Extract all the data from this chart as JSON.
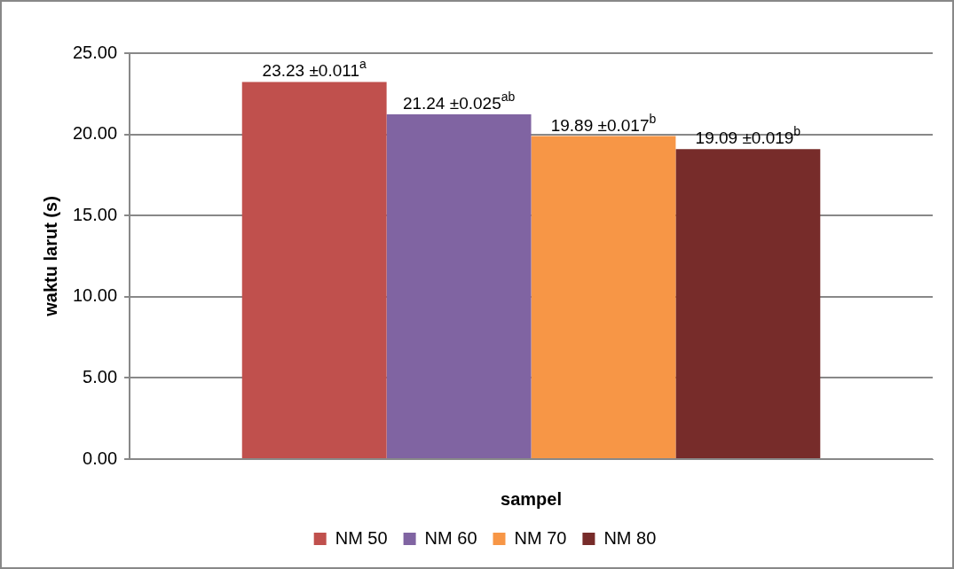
{
  "chart_data": {
    "type": "bar",
    "xlabel": "sampel",
    "ylabel": "waktu larut (s)",
    "categories": [
      null
    ],
    "series": [
      {
        "name": "NM 50",
        "color": "#c0504d",
        "values": [
          23.23
        ],
        "value_labels": [
          "23.23 ±0.011$^{a}$"
        ]
      },
      {
        "name": "NM 60",
        "color": "#8064a2",
        "values": [
          21.24
        ],
        "value_labels": [
          "21.24 ±0.025$^{ab}$"
        ]
      },
      {
        "name": "NM 70",
        "color": "#f79646",
        "values": [
          19.89
        ],
        "value_labels": [
          "19.89 ±0.017$^{b}$"
        ]
      },
      {
        "name": "NM 80",
        "color": "#772c2a",
        "values": [
          19.09
        ],
        "value_labels": [
          "19.09 ±0.019$^{b}$"
        ]
      }
    ],
    "ylim": [
      0,
      25
    ],
    "yticks": [
      {
        "value": 0,
        "label": "0.00"
      },
      {
        "value": 5,
        "label": "5.00"
      },
      {
        "value": 10,
        "label": "10.00"
      },
      {
        "value": 15,
        "label": "15.00"
      },
      {
        "value": 20,
        "label": "20.00"
      },
      {
        "value": 25,
        "label": "25.00"
      }
    ],
    "grid": "y",
    "legend": "bottom"
  }
}
